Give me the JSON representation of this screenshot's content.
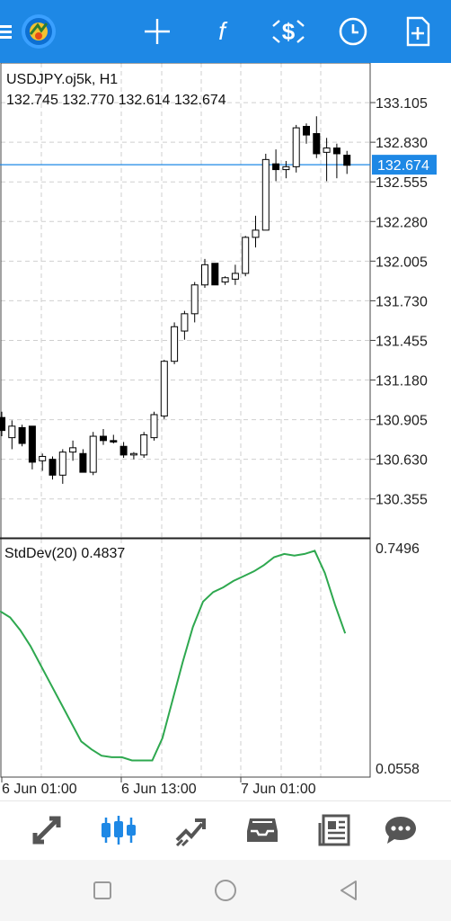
{
  "toolbar": {
    "menu_icon": "hamburger-menu-icon",
    "logo_icon": "metatrader-logo-icon",
    "crosshair_icon": "crosshair-icon",
    "indicators_icon": "function-f-icon",
    "objects_icon": "dollar-shapes-icon",
    "timeframe_icon": "clock-icon",
    "new_order_icon": "new-order-icon"
  },
  "main_panel": {
    "symbol_label": "USDJPY.oj5k, H1",
    "ohlc_label": "132.745 132.770 132.614 132.674",
    "current_price": "132.674"
  },
  "indicator_panel": {
    "label": "StdDev(20) 0.4837"
  },
  "chart_data": [
    {
      "type": "candlestick",
      "symbol": "USDJPY.oj5k",
      "timeframe": "H1",
      "ylim": [
        130.085,
        133.38
      ],
      "yticks": [
        "133.105",
        "132.830",
        "132.555",
        "132.280",
        "132.005",
        "131.730",
        "131.455",
        "131.180",
        "130.905",
        "130.630",
        "130.355"
      ],
      "current_price": 132.674,
      "grid": true,
      "candles": [
        [
          130.92,
          130.96,
          130.79,
          130.83
        ],
        [
          130.78,
          130.9,
          130.7,
          130.86
        ],
        [
          130.85,
          130.87,
          130.72,
          130.74
        ],
        [
          130.86,
          130.86,
          130.56,
          130.61
        ],
        [
          130.62,
          130.67,
          130.55,
          130.65
        ],
        [
          130.63,
          130.65,
          130.49,
          130.52
        ],
        [
          130.52,
          130.7,
          130.46,
          130.68
        ],
        [
          130.68,
          130.76,
          130.62,
          130.71
        ],
        [
          130.67,
          130.7,
          130.54,
          130.54
        ],
        [
          130.54,
          130.82,
          130.52,
          130.79
        ],
        [
          130.79,
          130.84,
          130.73,
          130.76
        ],
        [
          130.76,
          130.8,
          130.74,
          130.75
        ],
        [
          130.72,
          130.75,
          130.64,
          130.66
        ],
        [
          130.66,
          130.68,
          130.63,
          130.67
        ],
        [
          130.66,
          130.82,
          130.64,
          130.8
        ],
        [
          130.78,
          130.96,
          130.76,
          130.94
        ],
        [
          130.93,
          131.32,
          130.91,
          131.31
        ],
        [
          131.31,
          131.58,
          131.29,
          131.55
        ],
        [
          131.52,
          131.66,
          131.46,
          131.64
        ],
        [
          131.64,
          131.86,
          131.58,
          131.84
        ],
        [
          131.84,
          132.02,
          131.82,
          131.98
        ],
        [
          131.99,
          131.99,
          131.84,
          131.84
        ],
        [
          131.86,
          131.9,
          131.84,
          131.89
        ],
        [
          131.88,
          131.98,
          131.84,
          131.92
        ],
        [
          131.92,
          132.18,
          131.9,
          132.17
        ],
        [
          132.17,
          132.32,
          132.1,
          132.22
        ],
        [
          132.22,
          132.75,
          132.22,
          132.71
        ],
        [
          132.68,
          132.78,
          132.56,
          132.64
        ],
        [
          132.64,
          132.7,
          132.58,
          132.66
        ],
        [
          132.66,
          132.95,
          132.62,
          132.93
        ],
        [
          132.94,
          132.96,
          132.82,
          132.88
        ],
        [
          132.89,
          133.01,
          132.72,
          132.75
        ],
        [
          132.76,
          132.86,
          132.56,
          132.79
        ],
        [
          132.79,
          132.82,
          132.58,
          132.75
        ],
        [
          132.74,
          132.77,
          132.61,
          132.67
        ]
      ]
    },
    {
      "type": "line",
      "name": "StdDev(20)",
      "last_value": 0.4837,
      "ylim": [
        0.0558,
        0.7496
      ],
      "yticks": [
        "0.7496",
        "0.0558"
      ],
      "values": [
        0.55,
        0.53,
        0.49,
        0.44,
        0.38,
        0.32,
        0.26,
        0.2,
        0.14,
        0.115,
        0.095,
        0.09,
        0.09,
        0.08,
        0.08,
        0.08,
        0.15,
        0.27,
        0.39,
        0.5,
        0.58,
        0.61,
        0.625,
        0.645,
        0.66,
        0.675,
        0.695,
        0.72,
        0.73,
        0.725,
        0.73,
        0.74,
        0.67,
        0.57,
        0.48
      ],
      "color": "#2ea84f"
    }
  ],
  "time_axis": {
    "labels": [
      "6 Jun 01:00",
      "6 Jun 13:00",
      "7 Jun 01:00"
    ]
  },
  "bottom_nav": {
    "items": [
      {
        "name": "quotes-tab",
        "icon": "quotes-arrows-icon",
        "active": false
      },
      {
        "name": "chart-tab",
        "icon": "candlestick-chart-icon",
        "active": true
      },
      {
        "name": "trade-tab",
        "icon": "trade-trend-icon",
        "active": false
      },
      {
        "name": "history-tab",
        "icon": "inbox-tray-icon",
        "active": false
      },
      {
        "name": "news-tab",
        "icon": "newspaper-icon",
        "active": false
      },
      {
        "name": "chat-tab",
        "icon": "chat-bubble-icon",
        "active": false
      }
    ]
  },
  "colors": {
    "accent": "#1e88e5",
    "price_line": "#1e88e5",
    "indicator_line": "#2ea84f",
    "nav_icon": "#555555",
    "grid": "#c8c8c8"
  }
}
